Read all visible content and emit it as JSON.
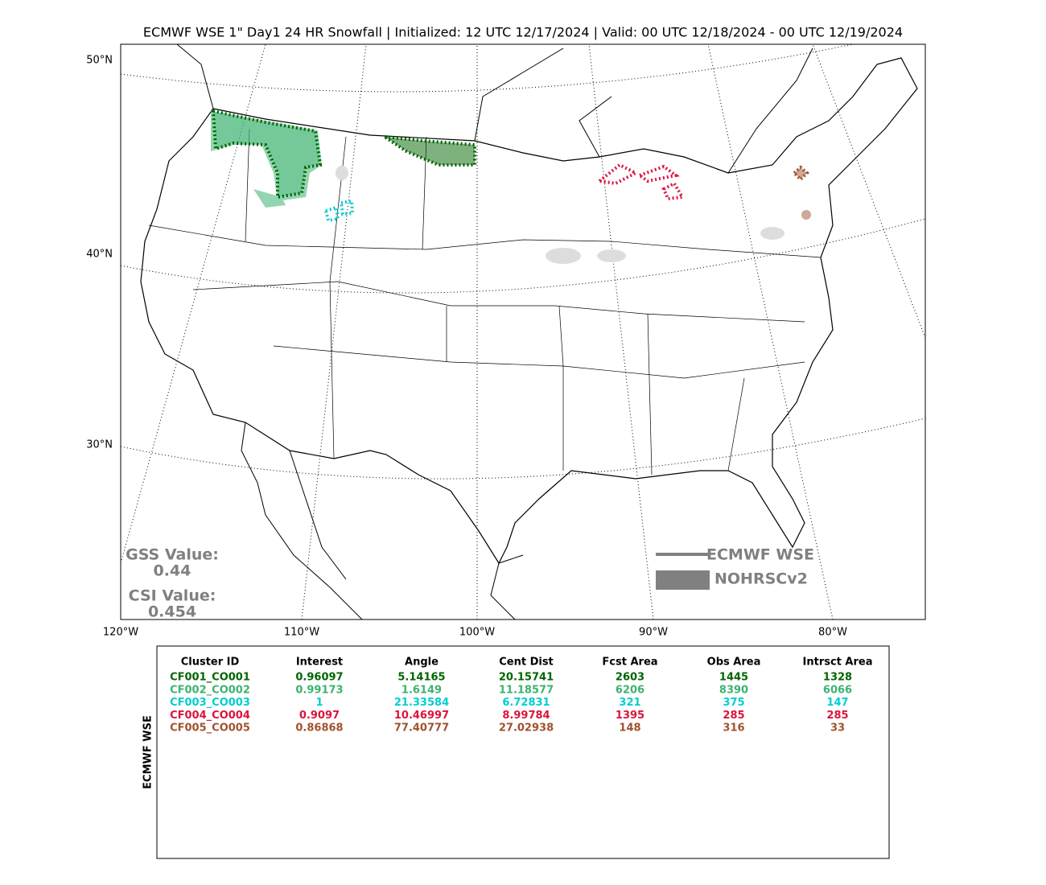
{
  "header": {
    "title": "ECMWF WSE 1\" Day1 24 HR Snowfall | Initialized: 12 UTC 12/17/2024 | Valid: 00 UTC 12/18/2024 - 00 UTC 12/19/2024"
  },
  "map": {
    "lat_labels": [
      "50°N",
      "40°N",
      "30°N"
    ],
    "lon_labels": [
      "120°W",
      "110°W",
      "100°W",
      "90°W",
      "80°W"
    ],
    "stats": [
      {
        "label": "GSS Value:",
        "value": "0.44"
      },
      {
        "label": "CSI Value:",
        "value": "0.454"
      }
    ],
    "legend": [
      "ECMWF WSE",
      "NOHRSCv2"
    ]
  },
  "table": {
    "side_label": "ECMWF WSE",
    "columns": [
      "Cluster ID",
      "Interest",
      "Angle",
      "Cent Dist",
      "Fcst Area",
      "Obs Area",
      "Intrsct Area"
    ],
    "row_colors": [
      "#006400",
      "#3cb371",
      "#00ced1",
      "#dc143c",
      "#a0522d"
    ],
    "rows": [
      [
        "CF001_CO001",
        "0.96097",
        "5.14165",
        "20.15741",
        "2603",
        "1445",
        "1328"
      ],
      [
        "CF002_CO002",
        "0.99173",
        "1.6149",
        "11.18577",
        "6206",
        "8390",
        "6066"
      ],
      [
        "CF003_CO003",
        "1",
        "21.33584",
        "6.72831",
        "321",
        "375",
        "147"
      ],
      [
        "CF004_CO004",
        "0.9097",
        "10.46997",
        "8.99784",
        "1395",
        "285",
        "285"
      ],
      [
        "CF005_CO005",
        "0.86868",
        "77.40777",
        "27.02938",
        "148",
        "316",
        "33"
      ]
    ]
  }
}
